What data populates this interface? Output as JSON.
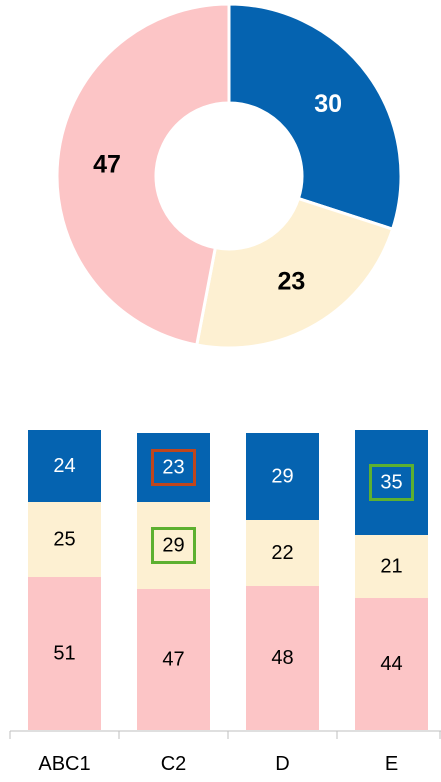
{
  "chart_data": [
    {
      "type": "donut",
      "categories": [
        null,
        null,
        null
      ],
      "series": [
        {
          "values": [
            30,
            23,
            47
          ],
          "colors": [
            "#0563b0",
            "#fdf0d2",
            "#fcc5c6"
          ]
        }
      ]
    },
    {
      "type": "stacked_bar",
      "categories": [
        "ABC1",
        "C2",
        "D",
        "E"
      ],
      "ylim": [
        0,
        100
      ],
      "series": [
        {
          "color": "#fcc5c6",
          "values": [
            51,
            47,
            48,
            44
          ],
          "box_colors": [
            null,
            null,
            null,
            null
          ]
        },
        {
          "color": "#fdf0d2",
          "values": [
            25,
            29,
            22,
            21
          ],
          "box_colors": [
            null,
            "#5db030",
            null,
            null
          ]
        },
        {
          "color": "#0563b0",
          "text_color": "#ffffff",
          "values": [
            24,
            23,
            29,
            35
          ],
          "box_colors": [
            null,
            "#c0461c",
            null,
            "#5db030"
          ]
        }
      ]
    }
  ]
}
